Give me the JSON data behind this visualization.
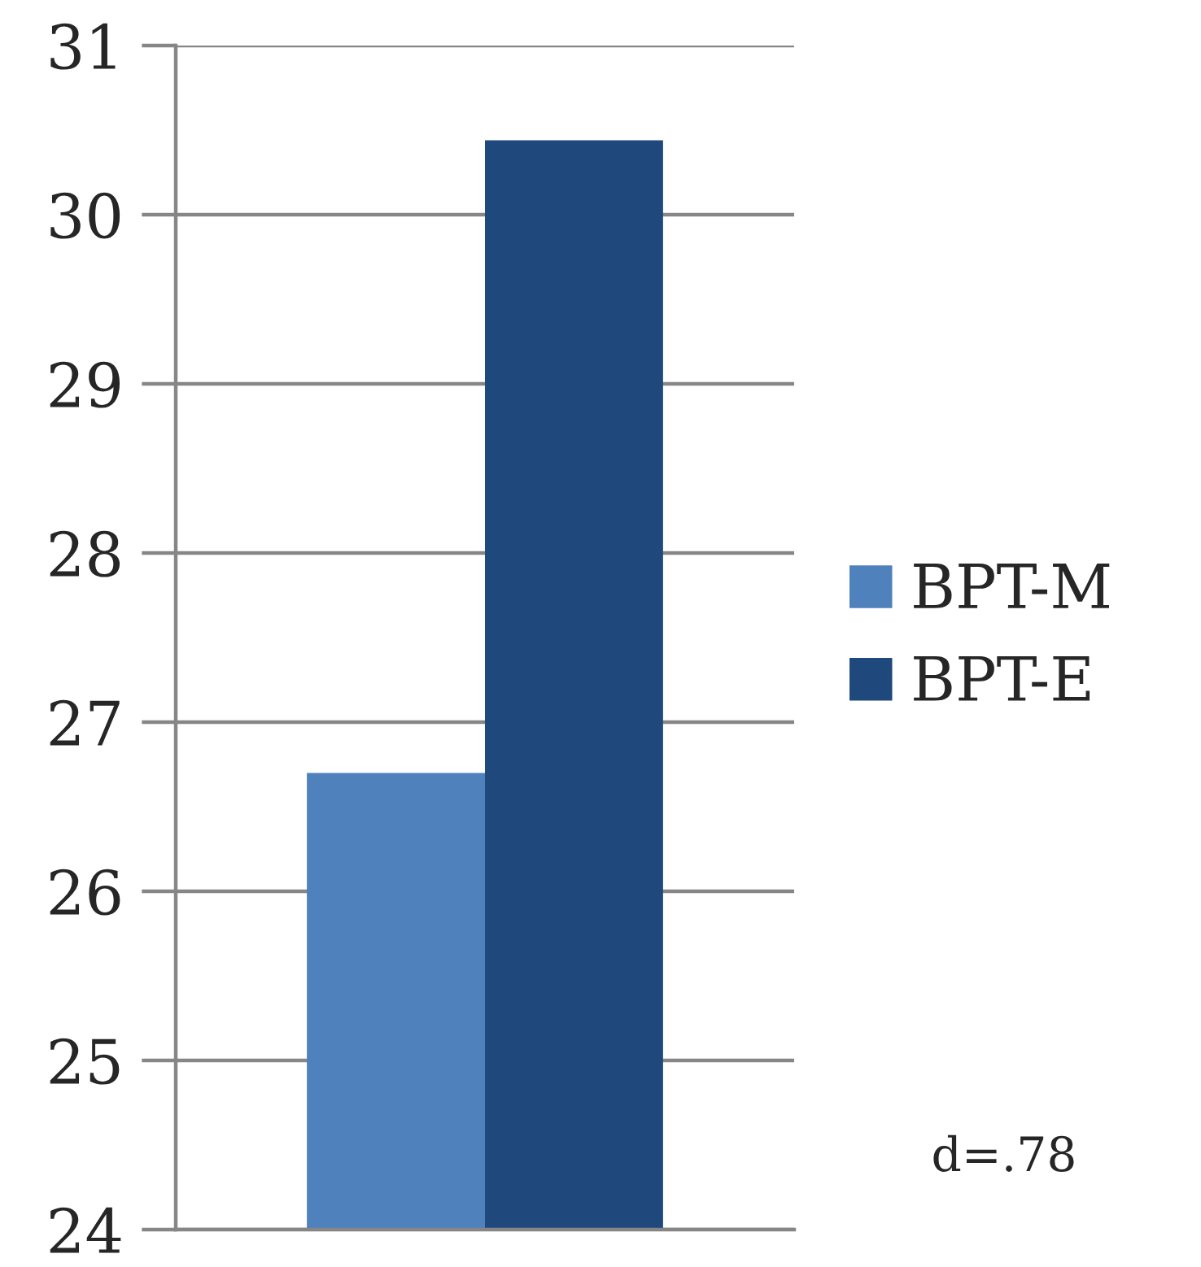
{
  "chart_data": {
    "type": "bar",
    "categories": [
      null
    ],
    "series": [
      {
        "name": "BPT-M",
        "color": "#4f81bd",
        "values": [
          26.7
        ]
      },
      {
        "name": "BPT-E",
        "color": "#1f497d",
        "values": [
          30.44
        ]
      }
    ],
    "ylim": [
      24,
      31
    ],
    "yticks": [
      24,
      25,
      26,
      27,
      28,
      29,
      30,
      31
    ],
    "grid": "y",
    "legend": "right",
    "tick_labels": "y",
    "annotations": [
      "d=.78"
    ]
  }
}
